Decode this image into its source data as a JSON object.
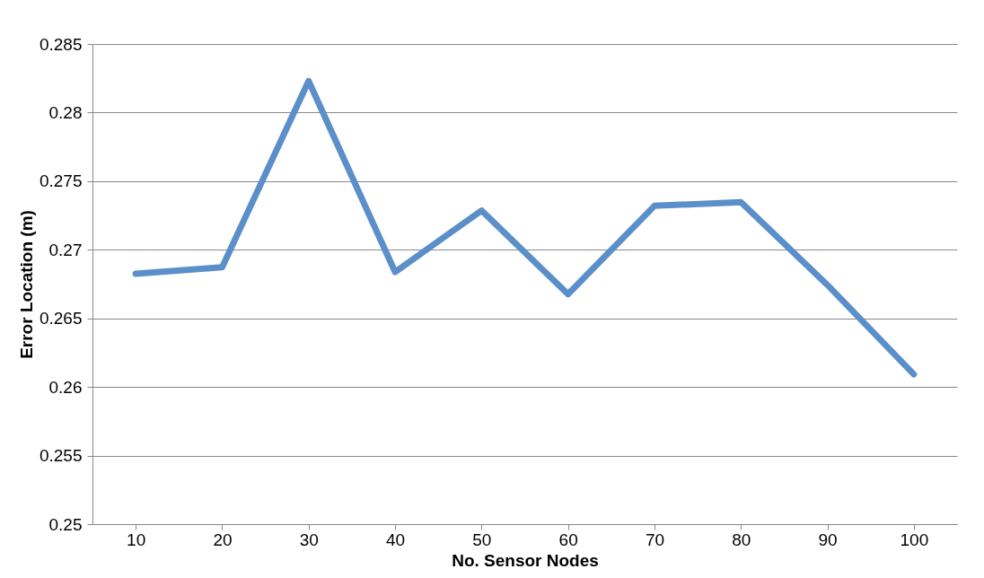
{
  "chart_data": {
    "type": "line",
    "xlabel": "No. Sensor Nodes",
    "ylabel": "Error Location (m)",
    "categories": [
      "10",
      "20",
      "30",
      "40",
      "50",
      "60",
      "70",
      "80",
      "90",
      "100"
    ],
    "series": [
      {
        "color": "#5b8fc9",
        "values": [
          0.26825,
          0.26873,
          0.2823,
          0.26838,
          0.27286,
          0.26676,
          0.2732,
          0.27347,
          0.26744,
          0.26092
        ]
      }
    ],
    "ylim": [
      0.25,
      0.285
    ],
    "yticks": [
      0.25,
      0.255,
      0.26,
      0.265,
      0.27,
      0.275,
      0.28,
      0.285
    ],
    "grid": "y",
    "marker": "none",
    "line_style": "solid"
  }
}
